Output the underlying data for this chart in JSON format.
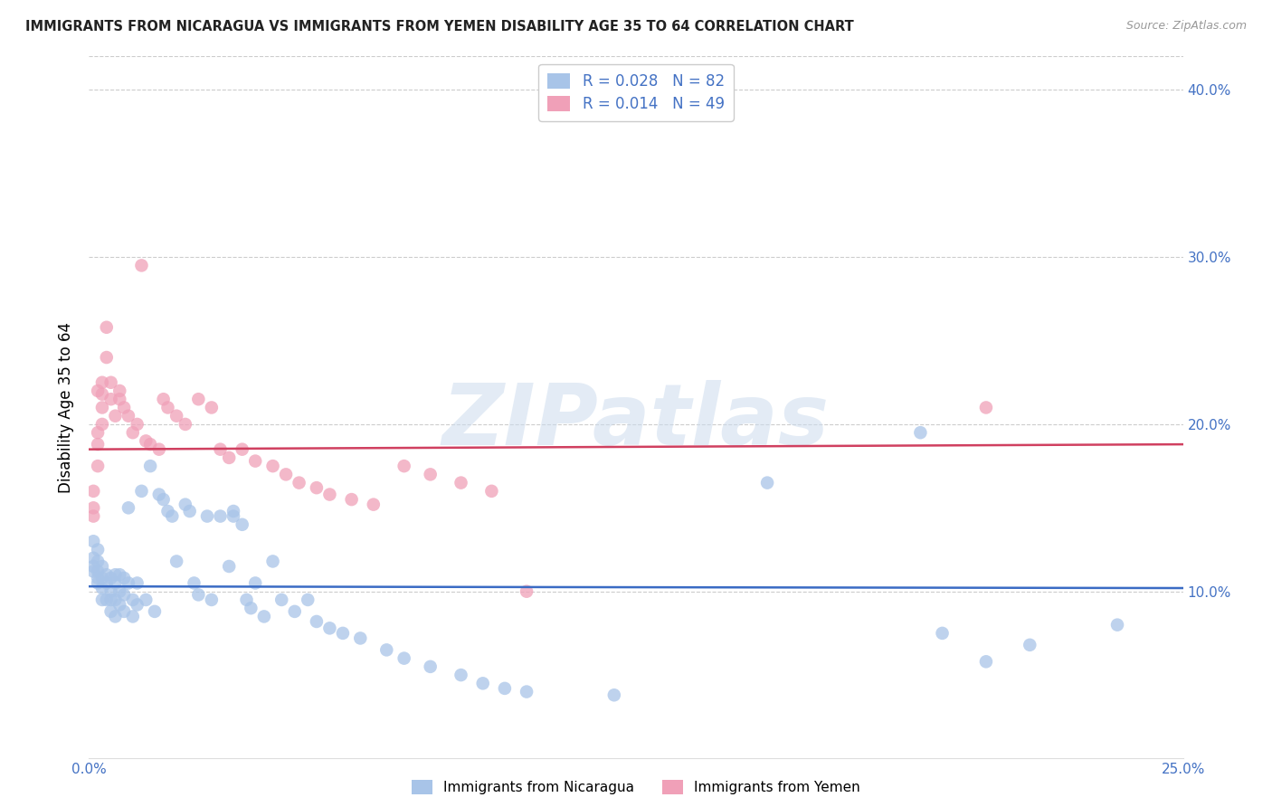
{
  "title": "IMMIGRANTS FROM NICARAGUA VS IMMIGRANTS FROM YEMEN DISABILITY AGE 35 TO 64 CORRELATION CHART",
  "source": "Source: ZipAtlas.com",
  "ylabel": "Disability Age 35 to 64",
  "xlim": [
    0.0,
    0.25
  ],
  "ylim": [
    0.0,
    0.42
  ],
  "xticks": [
    0.0,
    0.05,
    0.1,
    0.15,
    0.2,
    0.25
  ],
  "yticks": [
    0.1,
    0.2,
    0.3,
    0.4
  ],
  "ytick_labels": [
    "10.0%",
    "20.0%",
    "30.0%",
    "40.0%"
  ],
  "xtick_labels": [
    "0.0%",
    "",
    "",
    "",
    "",
    "25.0%"
  ],
  "nicaragua_color": "#a8c4e8",
  "yemen_color": "#f0a0b8",
  "nicaragua_line_color": "#3a6bc4",
  "yemen_line_color": "#d04060",
  "tick_color": "#4472c4",
  "watermark": "ZIPatlas",
  "nicaragua_R": "0.028",
  "nicaragua_N": "82",
  "yemen_R": "0.014",
  "yemen_N": "49",
  "nicaragua_x": [
    0.001,
    0.001,
    0.001,
    0.001,
    0.002,
    0.002,
    0.002,
    0.002,
    0.002,
    0.003,
    0.003,
    0.003,
    0.003,
    0.004,
    0.004,
    0.004,
    0.005,
    0.005,
    0.005,
    0.005,
    0.006,
    0.006,
    0.006,
    0.006,
    0.007,
    0.007,
    0.007,
    0.008,
    0.008,
    0.008,
    0.009,
    0.009,
    0.01,
    0.01,
    0.011,
    0.011,
    0.012,
    0.013,
    0.014,
    0.015,
    0.016,
    0.017,
    0.018,
    0.019,
    0.02,
    0.022,
    0.023,
    0.024,
    0.025,
    0.027,
    0.028,
    0.03,
    0.032,
    0.033,
    0.033,
    0.035,
    0.036,
    0.037,
    0.038,
    0.04,
    0.042,
    0.044,
    0.047,
    0.05,
    0.052,
    0.055,
    0.058,
    0.062,
    0.068,
    0.072,
    0.078,
    0.085,
    0.09,
    0.095,
    0.1,
    0.12,
    0.155,
    0.19,
    0.195,
    0.205,
    0.215,
    0.235
  ],
  "nicaragua_y": [
    0.13,
    0.12,
    0.115,
    0.112,
    0.125,
    0.118,
    0.112,
    0.108,
    0.105,
    0.102,
    0.115,
    0.108,
    0.095,
    0.11,
    0.105,
    0.095,
    0.108,
    0.1,
    0.095,
    0.088,
    0.11,
    0.105,
    0.095,
    0.085,
    0.11,
    0.1,
    0.092,
    0.108,
    0.098,
    0.088,
    0.15,
    0.105,
    0.095,
    0.085,
    0.105,
    0.092,
    0.16,
    0.095,
    0.175,
    0.088,
    0.158,
    0.155,
    0.148,
    0.145,
    0.118,
    0.152,
    0.148,
    0.105,
    0.098,
    0.145,
    0.095,
    0.145,
    0.115,
    0.148,
    0.145,
    0.14,
    0.095,
    0.09,
    0.105,
    0.085,
    0.118,
    0.095,
    0.088,
    0.095,
    0.082,
    0.078,
    0.075,
    0.072,
    0.065,
    0.06,
    0.055,
    0.05,
    0.045,
    0.042,
    0.04,
    0.038,
    0.165,
    0.195,
    0.075,
    0.058,
    0.068,
    0.08
  ],
  "yemen_x": [
    0.001,
    0.001,
    0.001,
    0.002,
    0.002,
    0.002,
    0.002,
    0.003,
    0.003,
    0.003,
    0.003,
    0.004,
    0.004,
    0.005,
    0.005,
    0.006,
    0.007,
    0.007,
    0.008,
    0.009,
    0.01,
    0.011,
    0.012,
    0.013,
    0.014,
    0.016,
    0.017,
    0.018,
    0.02,
    0.022,
    0.025,
    0.028,
    0.03,
    0.032,
    0.035,
    0.038,
    0.042,
    0.045,
    0.048,
    0.052,
    0.055,
    0.06,
    0.065,
    0.072,
    0.078,
    0.085,
    0.092,
    0.1,
    0.205
  ],
  "yemen_y": [
    0.16,
    0.15,
    0.145,
    0.22,
    0.195,
    0.188,
    0.175,
    0.225,
    0.218,
    0.21,
    0.2,
    0.258,
    0.24,
    0.225,
    0.215,
    0.205,
    0.22,
    0.215,
    0.21,
    0.205,
    0.195,
    0.2,
    0.295,
    0.19,
    0.188,
    0.185,
    0.215,
    0.21,
    0.205,
    0.2,
    0.215,
    0.21,
    0.185,
    0.18,
    0.185,
    0.178,
    0.175,
    0.17,
    0.165,
    0.162,
    0.158,
    0.155,
    0.152,
    0.175,
    0.17,
    0.165,
    0.16,
    0.1,
    0.21
  ],
  "blue_line_y0": 0.103,
  "blue_line_y1": 0.102,
  "red_line_y0": 0.185,
  "red_line_y1": 0.188
}
